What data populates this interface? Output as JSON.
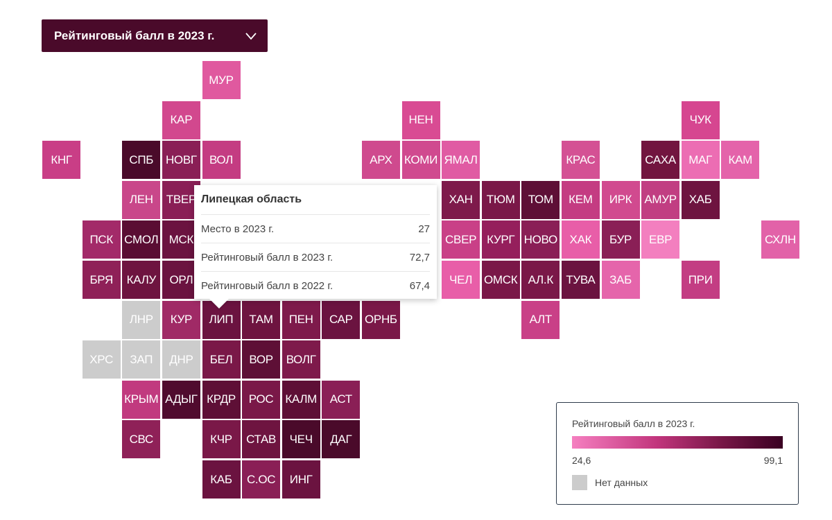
{
  "selector": {
    "label": "Рейтинговый балл в 2023 г."
  },
  "colors": {
    "min": "#f57fc0",
    "max": "#3a0022",
    "no_data": "#cccccc"
  },
  "tooltip": {
    "title": "Липецкая область",
    "rows": [
      {
        "label": "Место в 2023 г.",
        "value": "27"
      },
      {
        "label": "Рейтинговый балл в 2023 г.",
        "value": "72,7"
      },
      {
        "label": "Рейтинговый балл в 2022 г.",
        "value": "67,4"
      }
    ]
  },
  "legend": {
    "title": "Рейтинговый балл в 2023 г.",
    "min": "24,6",
    "max": "99,1",
    "no_data_label": "Нет данных"
  },
  "regions": [
    {
      "code": "МУР",
      "row": 0,
      "col": 5,
      "color": "#e0599f"
    },
    {
      "code": "КАР",
      "row": 1,
      "col": 4,
      "color": "#d2488e"
    },
    {
      "code": "НЕН",
      "row": 1,
      "col": 10,
      "color": "#d94b93"
    },
    {
      "code": "ЧУК",
      "row": 1,
      "col": 17,
      "color": "#d64690"
    },
    {
      "code": "КНГ",
      "row": 2,
      "col": 1,
      "color": "#c93e86"
    },
    {
      "code": "СПБ",
      "row": 2,
      "col": 3,
      "color": "#4a0a2a"
    },
    {
      "code": "НОВГ",
      "row": 2,
      "col": 4,
      "color": "#8a1f56"
    },
    {
      "code": "ВОЛ",
      "row": 2,
      "col": 5,
      "color": "#c43c82"
    },
    {
      "code": "АРХ",
      "row": 2,
      "col": 9,
      "color": "#cf4a8e"
    },
    {
      "code": "КОМИ",
      "row": 2,
      "col": 10,
      "color": "#d04a8f"
    },
    {
      "code": "ЯМАЛ",
      "row": 2,
      "col": 11,
      "color": "#e05ba3"
    },
    {
      "code": "КРАС",
      "row": 2,
      "col": 14,
      "color": "#d45194"
    },
    {
      "code": "САХА",
      "row": 2,
      "col": 16,
      "color": "#72153f"
    },
    {
      "code": "МАГ",
      "row": 2,
      "col": 17,
      "color": "#ec6db3"
    },
    {
      "code": "КАМ",
      "row": 2,
      "col": 18,
      "color": "#e463aa"
    },
    {
      "code": "ЛЕН",
      "row": 3,
      "col": 3,
      "color": "#c9478a"
    },
    {
      "code": "ТВЕР",
      "row": 3,
      "col": 4,
      "color": "#8a1f56"
    },
    {
      "code": "ХАН",
      "row": 3,
      "col": 11,
      "color": "#7e1a4b"
    },
    {
      "code": "ТЮМ",
      "row": 3,
      "col": 12,
      "color": "#7a1848"
    },
    {
      "code": "ТОМ",
      "row": 3,
      "col": 13,
      "color": "#5e0f36"
    },
    {
      "code": "КЕМ",
      "row": 3,
      "col": 14,
      "color": "#c43c82"
    },
    {
      "code": "ИРК",
      "row": 3,
      "col": 15,
      "color": "#d14a8f"
    },
    {
      "code": "АМУР",
      "row": 3,
      "col": 16,
      "color": "#c13e82"
    },
    {
      "code": "ХАБ",
      "row": 3,
      "col": 17,
      "color": "#6e1440"
    },
    {
      "code": "ПСК",
      "row": 4,
      "col": 2,
      "color": "#a32a69"
    },
    {
      "code": "СМОЛ",
      "row": 4,
      "col": 3,
      "color": "#5a0d33"
    },
    {
      "code": "МСК",
      "row": 4,
      "col": 4,
      "color": "#6b1340"
    },
    {
      "code": "СВЕР",
      "row": 4,
      "col": 11,
      "color": "#c94087"
    },
    {
      "code": "КУРГ",
      "row": 4,
      "col": 12,
      "color": "#951f5c"
    },
    {
      "code": "НОВО",
      "row": 4,
      "col": 13,
      "color": "#8a1f56"
    },
    {
      "code": "ХАК",
      "row": 4,
      "col": 14,
      "color": "#e85ea8"
    },
    {
      "code": "БУР",
      "row": 4,
      "col": 15,
      "color": "#8a1f56"
    },
    {
      "code": "ЕВР",
      "row": 4,
      "col": 16,
      "color": "#f37fbf"
    },
    {
      "code": "СХЛН",
      "row": 4,
      "col": 19,
      "color": "#e262a8"
    },
    {
      "code": "БРЯ",
      "row": 5,
      "col": 2,
      "color": "#8f2158"
    },
    {
      "code": "КАЛУ",
      "row": 5,
      "col": 3,
      "color": "#6e1440"
    },
    {
      "code": "ОРЛ",
      "row": 5,
      "col": 4,
      "color": "#6b1340"
    },
    {
      "code": "ЧЕЛ",
      "row": 5,
      "col": 11,
      "color": "#e85ea8"
    },
    {
      "code": "ОМСК",
      "row": 5,
      "col": 12,
      "color": "#7a1848"
    },
    {
      "code": "АЛ.К",
      "row": 5,
      "col": 13,
      "color": "#7a1848"
    },
    {
      "code": "ТУВА",
      "row": 5,
      "col": 14,
      "color": "#6b1340"
    },
    {
      "code": "ЗАБ",
      "row": 5,
      "col": 15,
      "color": "#e565ab"
    },
    {
      "code": "ПРИ",
      "row": 5,
      "col": 17,
      "color": "#c33d83"
    },
    {
      "code": "ЛНР",
      "row": 6,
      "col": 3,
      "color": "#cccccc"
    },
    {
      "code": "КУР",
      "row": 6,
      "col": 4,
      "color": "#a02a66"
    },
    {
      "code": "ЛИП",
      "row": 6,
      "col": 5,
      "color": "#6b1340"
    },
    {
      "code": "ТАМ",
      "row": 6,
      "col": 6,
      "color": "#6e1440"
    },
    {
      "code": "ПЕН",
      "row": 6,
      "col": 7,
      "color": "#7e1a4b"
    },
    {
      "code": "САР",
      "row": 6,
      "col": 8,
      "color": "#6b1340"
    },
    {
      "code": "ОРНБ",
      "row": 6,
      "col": 9,
      "color": "#7a1848"
    },
    {
      "code": "АЛТ",
      "row": 6,
      "col": 13,
      "color": "#c94087"
    },
    {
      "code": "ХРС",
      "row": 7,
      "col": 2,
      "color": "#cccccc"
    },
    {
      "code": "ЗАП",
      "row": 7,
      "col": 3,
      "color": "#cccccc"
    },
    {
      "code": "ДНР",
      "row": 7,
      "col": 4,
      "color": "#cccccc"
    },
    {
      "code": "БЕЛ",
      "row": 7,
      "col": 5,
      "color": "#7a1848"
    },
    {
      "code": "ВОР",
      "row": 7,
      "col": 6,
      "color": "#5e0f36"
    },
    {
      "code": "ВОЛГ",
      "row": 7,
      "col": 7,
      "color": "#7e1a4b"
    },
    {
      "code": "КРЫМ",
      "row": 8,
      "col": 3,
      "color": "#c13a7f"
    },
    {
      "code": "АДЫГ",
      "row": 8,
      "col": 4,
      "color": "#500b2e"
    },
    {
      "code": "КРДР",
      "row": 8,
      "col": 5,
      "color": "#5e0f36"
    },
    {
      "code": "РОС",
      "row": 8,
      "col": 6,
      "color": "#7a1848"
    },
    {
      "code": "КАЛМ",
      "row": 8,
      "col": 7,
      "color": "#5e0f36"
    },
    {
      "code": "АСТ",
      "row": 8,
      "col": 8,
      "color": "#8a1f56"
    },
    {
      "code": "СВС",
      "row": 9,
      "col": 3,
      "color": "#8f2158"
    },
    {
      "code": "КЧР",
      "row": 9,
      "col": 5,
      "color": "#7a1848"
    },
    {
      "code": "СТАВ",
      "row": 9,
      "col": 6,
      "color": "#6e1440"
    },
    {
      "code": "ЧЕЧ",
      "row": 9,
      "col": 7,
      "color": "#4a0a2a"
    },
    {
      "code": "ДАГ",
      "row": 9,
      "col": 8,
      "color": "#4a0a2a"
    },
    {
      "code": "КАБ",
      "row": 10,
      "col": 5,
      "color": "#6b1340"
    },
    {
      "code": "С.ОС",
      "row": 10,
      "col": 6,
      "color": "#8a1f56"
    },
    {
      "code": "ИНГ",
      "row": 10,
      "col": 7,
      "color": "#6b1340"
    }
  ]
}
